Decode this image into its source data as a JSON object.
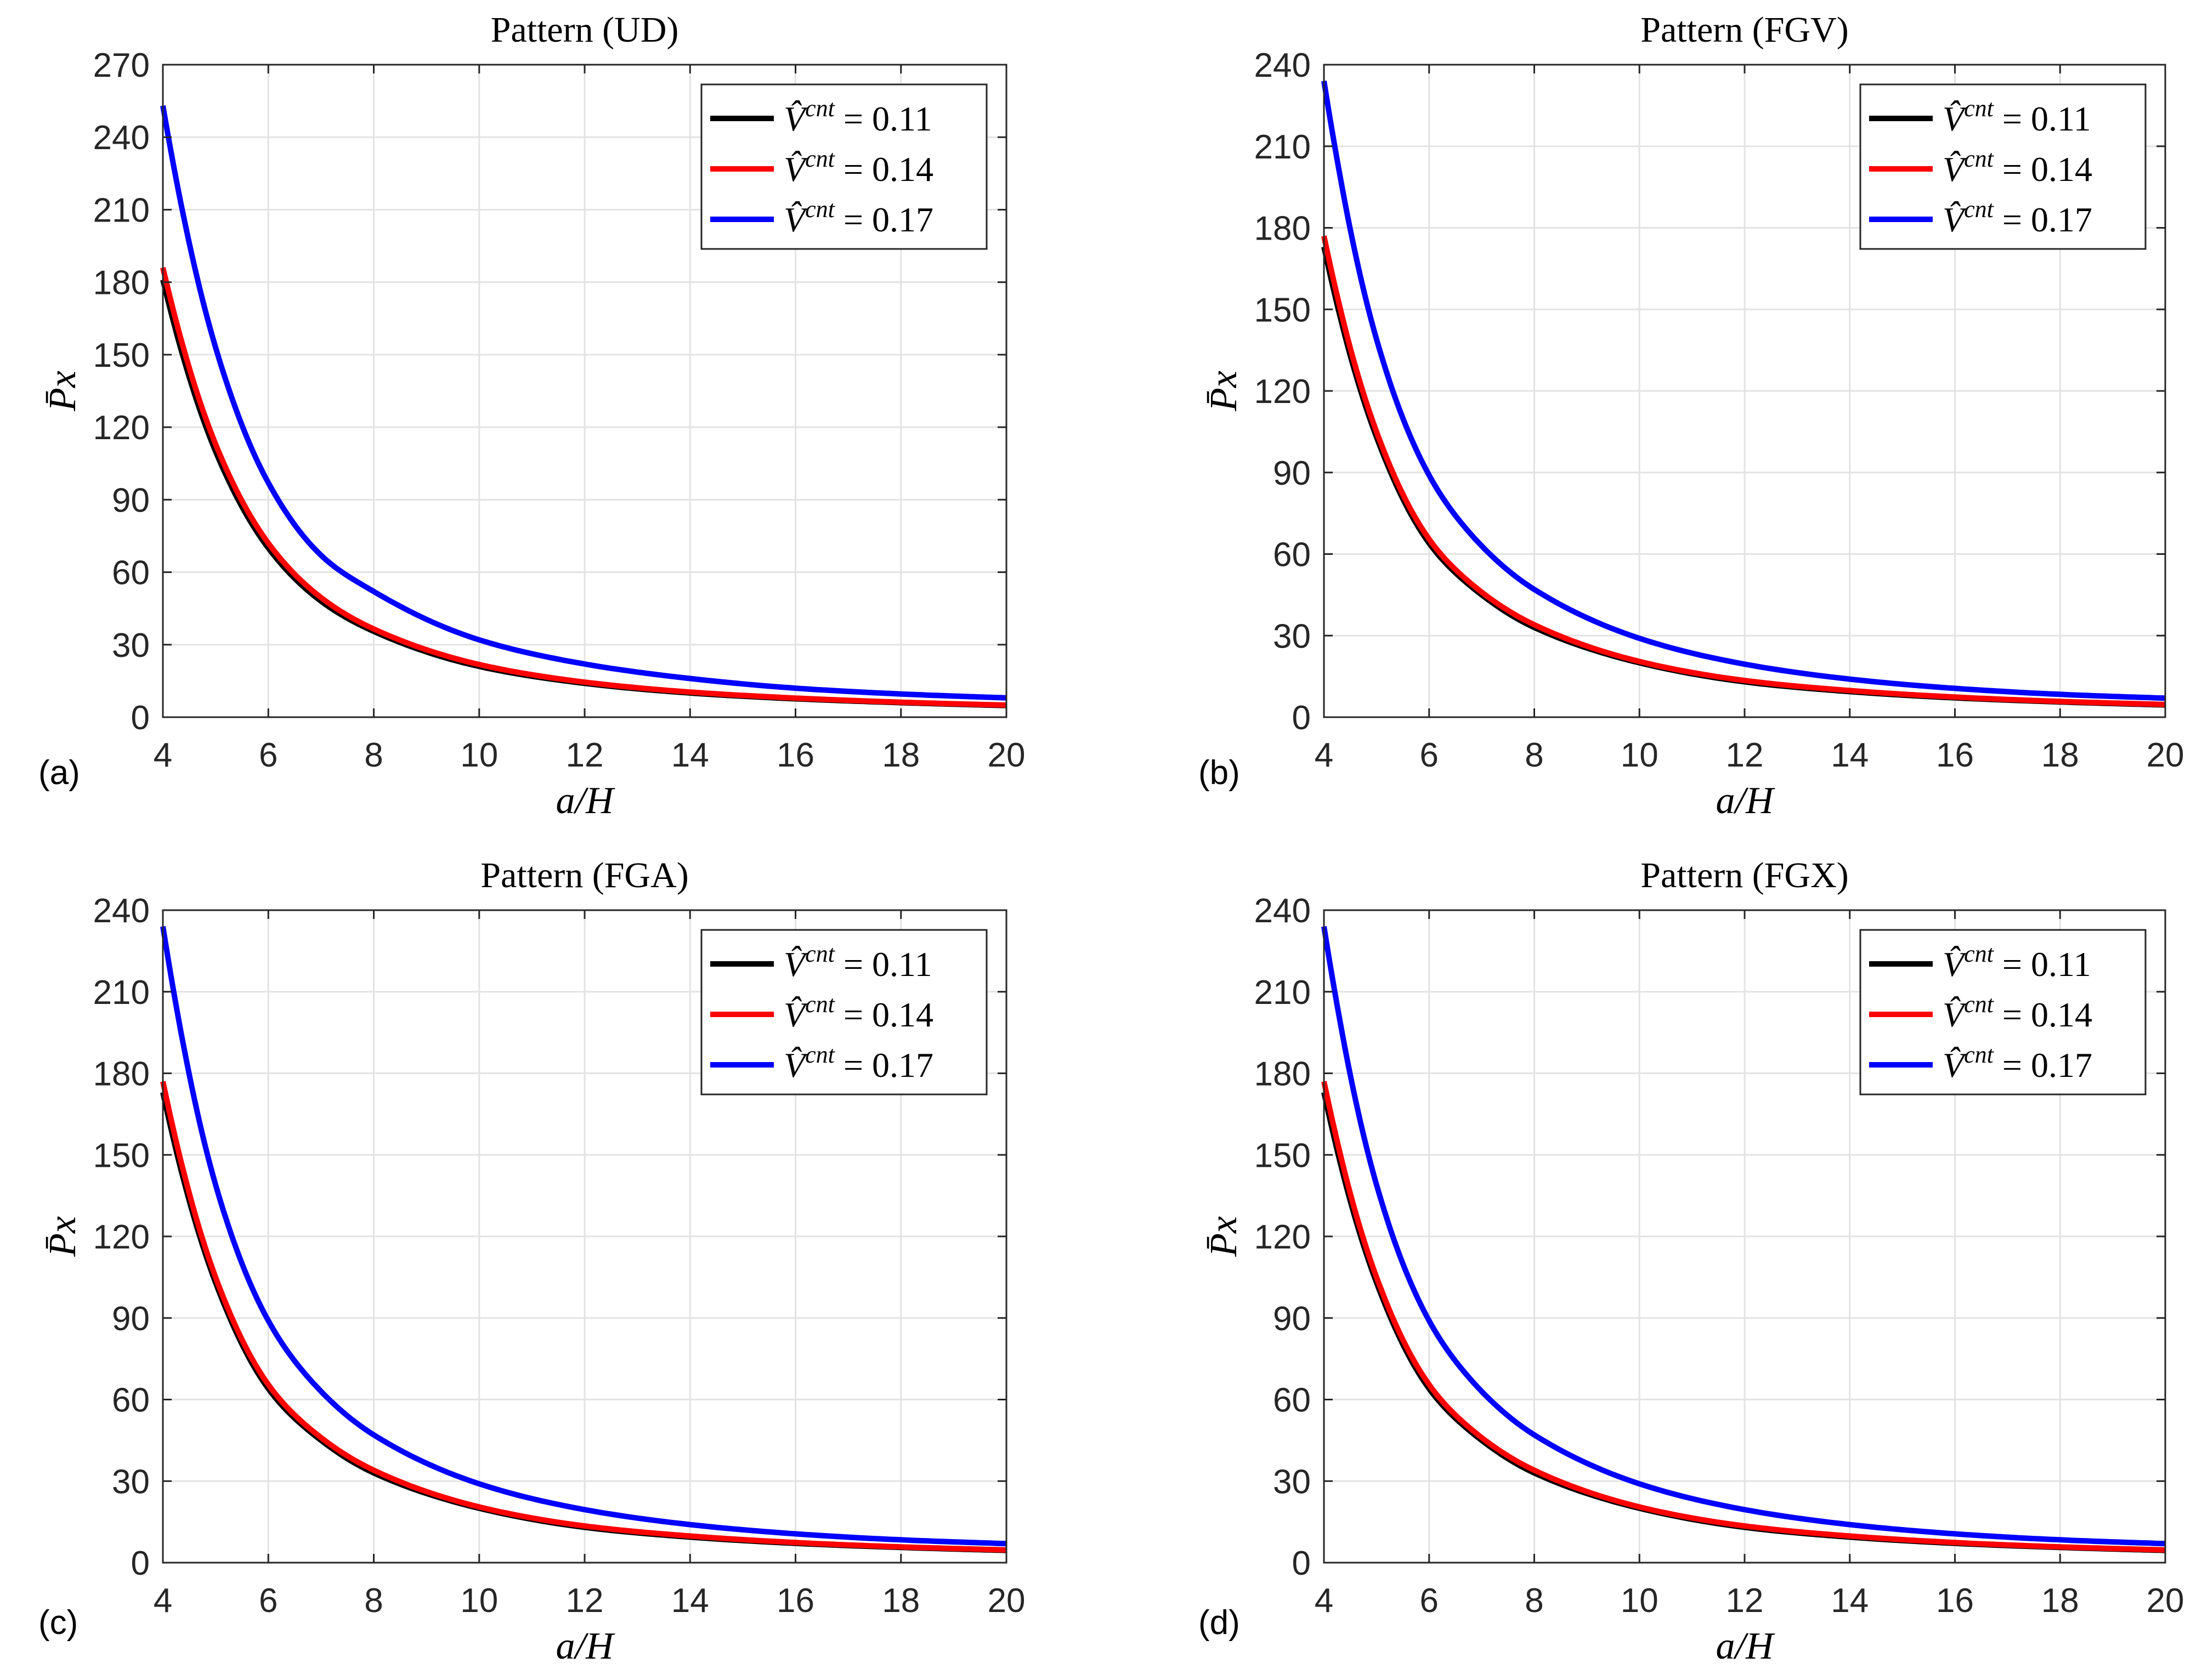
{
  "figure": {
    "panel_labels": [
      "(a)",
      "(b)",
      "(c)",
      "(d)"
    ]
  },
  "chart_data": [
    {
      "type": "line",
      "panel": "(a)",
      "title": "Pattern (UD)",
      "xlabel": "a/H",
      "ylabel": "P̄x",
      "xlim": [
        4,
        20
      ],
      "ylim": [
        0,
        270
      ],
      "xticks": [
        4,
        6,
        8,
        10,
        12,
        14,
        16,
        18,
        20
      ],
      "yticks": [
        0,
        30,
        60,
        90,
        120,
        150,
        180,
        210,
        240,
        270
      ],
      "grid": true,
      "legend_position": "top-right",
      "series": [
        {
          "name": "V̂cnt = 0.11",
          "color": "#000000",
          "y_at_4": 181,
          "x": [
            4,
            5,
            6,
            7,
            8,
            10,
            12,
            14,
            16,
            18,
            20
          ],
          "values": [
            181,
            110,
            70,
            48,
            35.5,
            21,
            14,
            10,
            7.6,
            6,
            4.8
          ]
        },
        {
          "name": "V̂cnt = 0.14",
          "color": "#ff0000",
          "y_at_4": 186,
          "x": [
            4,
            5,
            6,
            7,
            8,
            10,
            12,
            14,
            16,
            18,
            20
          ],
          "values": [
            186,
            113,
            72,
            49.5,
            36.5,
            21.8,
            14.5,
            10.4,
            7.9,
            6.2,
            5
          ]
        },
        {
          "name": "V̂cnt = 0.17",
          "color": "#0000ff",
          "y_at_4": 253,
          "x": [
            4,
            5,
            6,
            7,
            8,
            10,
            12,
            14,
            16,
            18,
            20
          ],
          "values": [
            253,
            153,
            97,
            67,
            52,
            32,
            22,
            16,
            12,
            9.6,
            8
          ]
        }
      ]
    },
    {
      "type": "line",
      "panel": "(b)",
      "title": "Pattern (FGV)",
      "xlabel": "a/H",
      "ylabel": "P̄x",
      "xlim": [
        4,
        20
      ],
      "ylim": [
        0,
        240
      ],
      "xticks": [
        4,
        6,
        8,
        10,
        12,
        14,
        16,
        18,
        20
      ],
      "yticks": [
        0,
        30,
        60,
        90,
        120,
        150,
        180,
        210,
        240
      ],
      "grid": true,
      "legend_position": "top-right",
      "series": [
        {
          "name": "V̂cnt = 0.11",
          "color": "#000000",
          "x": [
            4,
            5,
            6,
            7,
            8,
            10,
            12,
            14,
            16,
            18,
            20
          ],
          "values": [
            173,
            103,
            64,
            45,
            33,
            20,
            13,
            9.4,
            7.1,
            5.6,
            4.5
          ]
        },
        {
          "name": "V̂cnt = 0.14",
          "color": "#ff0000",
          "x": [
            4,
            5,
            6,
            7,
            8,
            10,
            12,
            14,
            16,
            18,
            20
          ],
          "values": [
            177,
            105,
            65.5,
            46,
            34,
            20.5,
            13.5,
            9.8,
            7.4,
            5.8,
            4.7
          ]
        },
        {
          "name": "V̂cnt = 0.17",
          "color": "#0000ff",
          "x": [
            4,
            5,
            6,
            7,
            8,
            10,
            12,
            14,
            16,
            18,
            20
          ],
          "values": [
            234,
            139,
            89,
            63,
            47,
            29,
            19.5,
            14,
            10.6,
            8.4,
            7
          ]
        }
      ]
    },
    {
      "type": "line",
      "panel": "(c)",
      "title": "Pattern (FGA)",
      "xlabel": "a/H",
      "ylabel": "P̄x",
      "xlim": [
        4,
        20
      ],
      "ylim": [
        0,
        240
      ],
      "xticks": [
        4,
        6,
        8,
        10,
        12,
        14,
        16,
        18,
        20
      ],
      "yticks": [
        0,
        30,
        60,
        90,
        120,
        150,
        180,
        210,
        240
      ],
      "grid": true,
      "legend_position": "top-right",
      "series": [
        {
          "name": "V̂cnt = 0.11",
          "color": "#000000",
          "x": [
            4,
            5,
            6,
            7,
            8,
            10,
            12,
            14,
            16,
            18,
            20
          ],
          "values": [
            173,
            103,
            64,
            45,
            33,
            20,
            13,
            9.4,
            7.1,
            5.6,
            4.5
          ]
        },
        {
          "name": "V̂cnt = 0.14",
          "color": "#ff0000",
          "x": [
            4,
            5,
            6,
            7,
            8,
            10,
            12,
            14,
            16,
            18,
            20
          ],
          "values": [
            177,
            105,
            65.5,
            46,
            34,
            20.5,
            13.5,
            9.8,
            7.4,
            5.8,
            4.7
          ]
        },
        {
          "name": "V̂cnt = 0.17",
          "color": "#0000ff",
          "x": [
            4,
            5,
            6,
            7,
            8,
            10,
            12,
            14,
            16,
            18,
            20
          ],
          "values": [
            234,
            139,
            89,
            63,
            47,
            29,
            19.5,
            14,
            10.6,
            8.4,
            7
          ]
        }
      ]
    },
    {
      "type": "line",
      "panel": "(d)",
      "title": "Pattern (FGX)",
      "xlabel": "a/H",
      "ylabel": "P̄x",
      "xlim": [
        4,
        20
      ],
      "ylim": [
        0,
        240
      ],
      "xticks": [
        4,
        6,
        8,
        10,
        12,
        14,
        16,
        18,
        20
      ],
      "yticks": [
        0,
        30,
        60,
        90,
        120,
        150,
        180,
        210,
        240
      ],
      "grid": true,
      "legend_position": "top-right",
      "series": [
        {
          "name": "V̂cnt = 0.11",
          "color": "#000000",
          "x": [
            4,
            5,
            6,
            7,
            8,
            10,
            12,
            14,
            16,
            18,
            20
          ],
          "values": [
            173,
            103,
            64,
            45,
            33,
            20,
            13,
            9.4,
            7.1,
            5.6,
            4.5
          ]
        },
        {
          "name": "V̂cnt = 0.14",
          "color": "#ff0000",
          "x": [
            4,
            5,
            6,
            7,
            8,
            10,
            12,
            14,
            16,
            18,
            20
          ],
          "values": [
            177,
            105,
            65.5,
            46,
            34,
            20.5,
            13.5,
            9.8,
            7.4,
            5.8,
            4.7
          ]
        },
        {
          "name": "V̂cnt = 0.17",
          "color": "#0000ff",
          "x": [
            4,
            5,
            6,
            7,
            8,
            10,
            12,
            14,
            16,
            18,
            20
          ],
          "values": [
            234,
            139,
            89,
            63,
            47,
            29,
            19.5,
            14,
            10.6,
            8.4,
            7
          ]
        }
      ]
    }
  ],
  "legend_labels": {
    "symbol": "V",
    "superscript": "cnt",
    "equals": "="
  }
}
